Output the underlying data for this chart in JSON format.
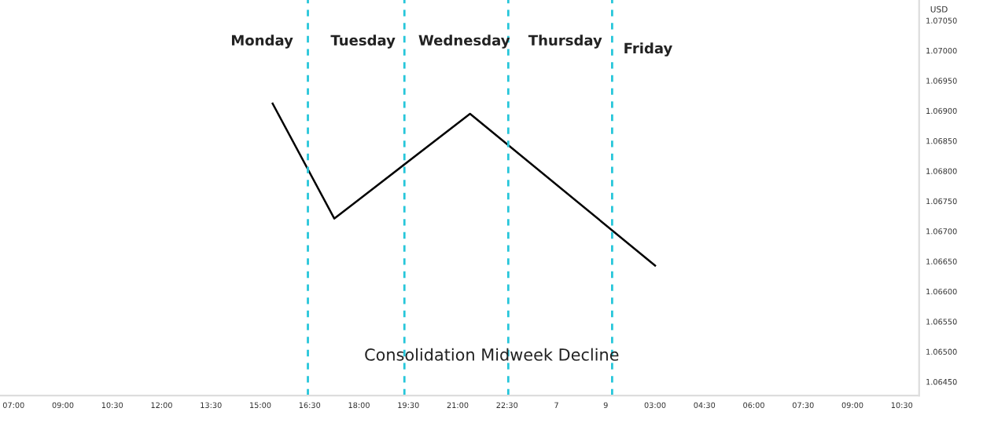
{
  "chart_data": {
    "type": "line",
    "ylabel": "USD",
    "categories": [
      "07:00",
      null,
      null,
      null,
      "09:00",
      null,
      null,
      null,
      "10:30",
      null,
      null,
      null,
      "12:00",
      null,
      null,
      null,
      "13:30",
      null,
      null,
      null,
      "15:00",
      null,
      null,
      null,
      "16:30",
      null,
      null,
      null,
      "18:00",
      null,
      null,
      null,
      "19:30",
      null,
      null,
      null,
      "21:00",
      null,
      null,
      null,
      "22:30",
      null,
      null,
      null,
      "7",
      null,
      null,
      null,
      "9",
      null,
      null,
      null,
      "03:00",
      null,
      null,
      null,
      "04:30",
      null,
      null,
      null,
      "06:00",
      null,
      null,
      null,
      "07:30",
      null,
      null,
      null,
      "09:00",
      null,
      null,
      null,
      "10:30"
    ],
    "series": [
      {
        "color": "#000000",
        "values": [
          null,
          null,
          null,
          null,
          null,
          null,
          null,
          null,
          null,
          null,
          null,
          null,
          null,
          null,
          null,
          null,
          null,
          null,
          null,
          null,
          null,
          1.06912,
          null,
          null,
          null,
          null,
          1.06721,
          null,
          null,
          null,
          null,
          null,
          null,
          null,
          null,
          null,
          null,
          1.06895,
          null,
          null,
          null,
          null,
          null,
          null,
          null,
          null,
          null,
          null,
          null,
          null,
          null,
          null,
          1.06643,
          null,
          null,
          null,
          null,
          null,
          null,
          null,
          null,
          null,
          null,
          null,
          null,
          null,
          null,
          null,
          null,
          null,
          null,
          null,
          null
        ]
      }
    ],
    "ylim": [
      1.06427,
      1.07084
    ],
    "yticks": [
      {
        "value": 1.0645,
        "label": "1.06450"
      },
      {
        "value": 1.065,
        "label": "1.06500"
      },
      {
        "value": 1.0655,
        "label": "1.06550"
      },
      {
        "value": 1.066,
        "label": "1.06600"
      },
      {
        "value": 1.0665,
        "label": "1.06650"
      },
      {
        "value": 1.067,
        "label": "1.06700"
      },
      {
        "value": 1.0675,
        "label": "1.06750"
      },
      {
        "value": 1.068,
        "label": "1.06800"
      },
      {
        "value": 1.0685,
        "label": "1.06850"
      },
      {
        "value": 1.069,
        "label": "1.06900"
      },
      {
        "value": 1.0695,
        "label": "1.06950"
      },
      {
        "value": 1.07,
        "label": "1.07000"
      },
      {
        "value": 1.0705,
        "label": "1.07050"
      }
    ],
    "annotations": [
      "Monday",
      "Tuesday",
      "Wednesday",
      "Thursday",
      "Friday",
      "Consolidation Midweek Decline"
    ],
    "grid": false,
    "legend": false,
    "marker": "none",
    "line_style": "solid"
  }
}
